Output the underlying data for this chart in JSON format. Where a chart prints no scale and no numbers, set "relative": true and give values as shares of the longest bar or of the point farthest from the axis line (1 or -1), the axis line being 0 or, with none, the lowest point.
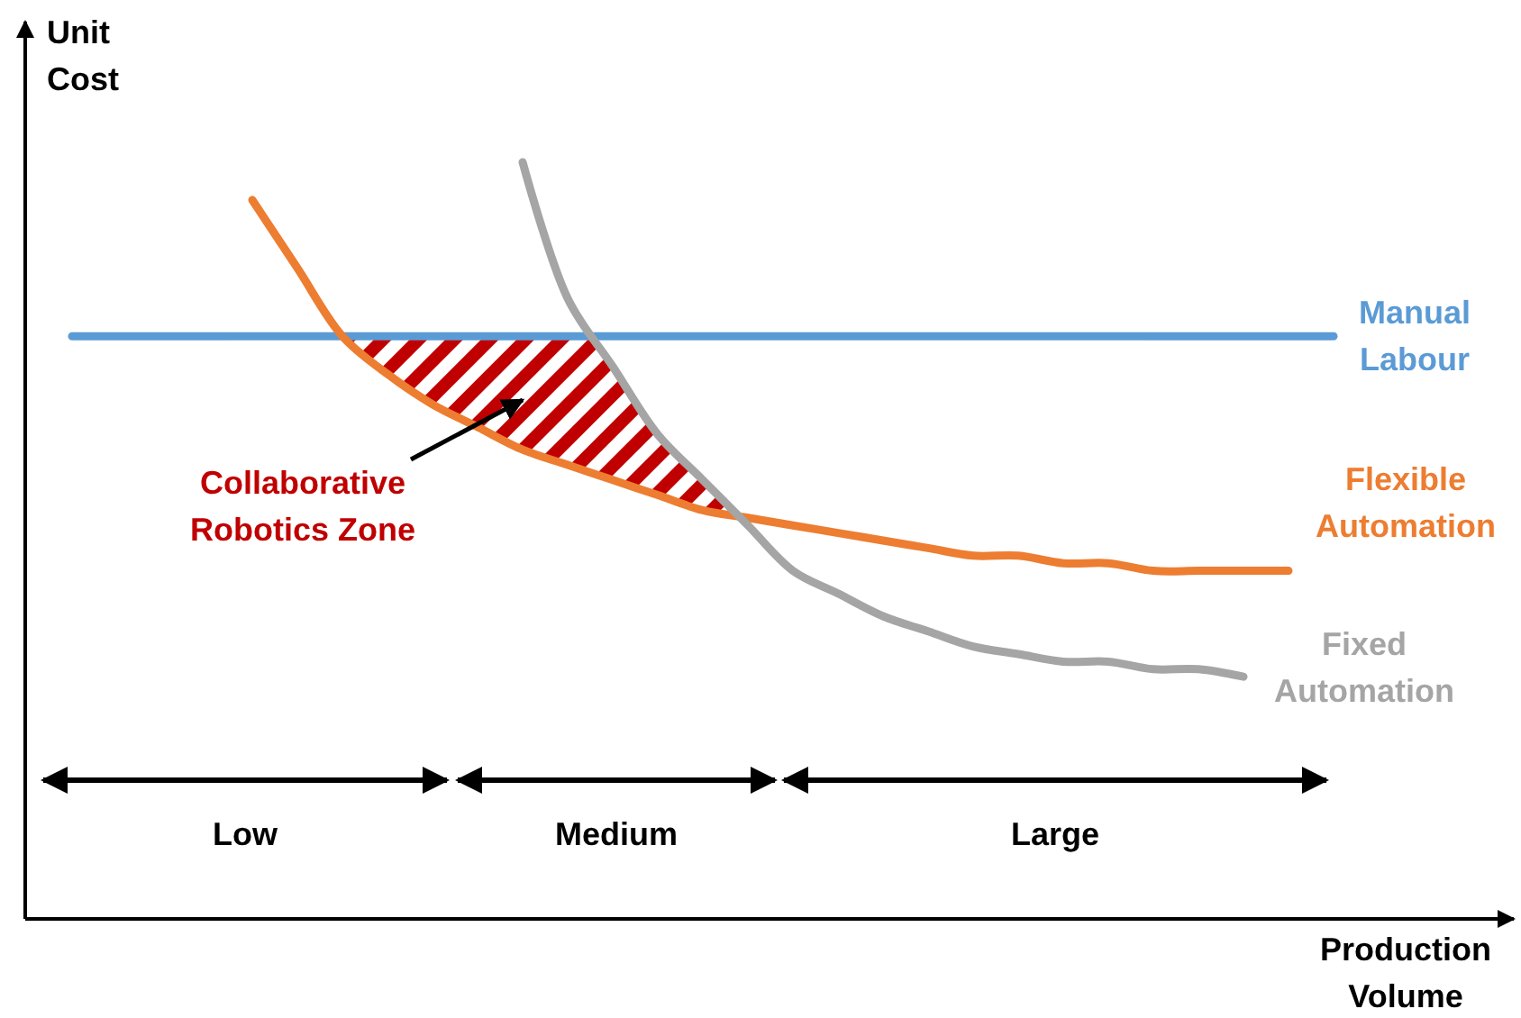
{
  "chart_data": {
    "type": "line",
    "relative": true,
    "xlabel": "Production Volume",
    "ylabel": "Unit Cost",
    "categories": [
      null,
      null,
      null,
      null,
      null,
      null,
      null,
      null,
      null,
      null,
      null,
      null,
      null,
      null,
      null,
      null,
      null,
      null,
      null,
      null,
      null,
      null,
      null,
      null,
      null,
      null,
      null,
      null,
      null
    ],
    "series": [
      {
        "name": "Manual Labour",
        "color": "#5b9bd5",
        "values": [
          0.77,
          0.77,
          0.77,
          0.77,
          0.77,
          0.77,
          0.77,
          0.77,
          0.77,
          0.77,
          0.77,
          0.77,
          0.77,
          0.77,
          0.77,
          0.77,
          0.77,
          0.77,
          0.77,
          0.77,
          0.77,
          0.77,
          0.77,
          0.77,
          0.77,
          0.77,
          0.77,
          0.77,
          0.77
        ]
      },
      {
        "name": "Flexible Automation",
        "color": "#ed7d31",
        "values": [
          null,
          null,
          null,
          null,
          0.95,
          0.86,
          0.77,
          0.72,
          0.68,
          0.65,
          0.62,
          0.6,
          0.58,
          0.56,
          0.54,
          0.53,
          0.52,
          0.51,
          0.5,
          0.49,
          0.48,
          0.48,
          0.47,
          0.47,
          0.46,
          0.46,
          0.46,
          0.46,
          null
        ]
      },
      {
        "name": "Fixed Automation",
        "color": "#a5a5a5",
        "values": [
          null,
          null,
          null,
          null,
          null,
          null,
          null,
          null,
          null,
          null,
          1,
          0.82,
          0.73,
          0.64,
          0.58,
          0.52,
          0.46,
          0.43,
          0.4,
          0.38,
          0.36,
          0.35,
          0.34,
          0.34,
          0.33,
          0.33,
          0.32,
          null,
          null
        ]
      }
    ],
    "annotations": [
      "Collaborative Robotics Zone",
      "Low",
      "Medium",
      "Large"
    ]
  }
}
